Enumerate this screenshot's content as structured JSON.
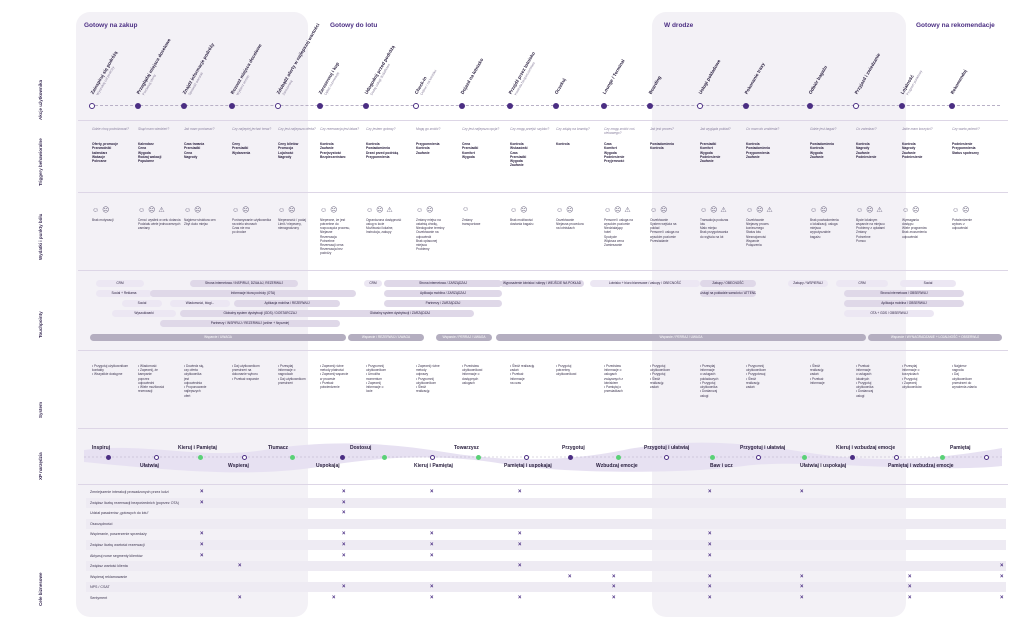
{
  "phases": [
    "Gotowy na zakup",
    "Gotowy do lotu",
    "W drodze",
    "Gotowy na rekomendacje"
  ],
  "rows": [
    "Akcje użytkownika",
    "Triggery behawioralne",
    "Wydatki i punkty bólu",
    "Touchpointy",
    "System",
    "XP narzędzia",
    "Cele biznesowe"
  ],
  "steps": [
    {
      "label": "Zainspiruj się podróżą",
      "sub": "Wyszukaj cel podróży"
    },
    {
      "label": "Przeglądaj miejsca docelowe",
      "sub": "Porównaj oferty"
    },
    {
      "label": "Znajdź informacje podróży",
      "sub": "Sprawdź warunki"
    },
    {
      "label": "Rozważ miejsca docelowe",
      "sub": "Wybierz termin"
    },
    {
      "label": "Zdobądź oferty w najlepszej wartości",
      "sub": "Zarezerwuj"
    },
    {
      "label": "Zarezerwuj i kup",
      "sub": "Opłać rezerwację"
    },
    {
      "label": "Udogodnij przed podróżą",
      "sub": "Dodaj usługi dodatkowe"
    },
    {
      "label": "Check-in",
      "sub": "Online / na lotnisku"
    },
    {
      "label": "Dojazd na lotnisko",
      "sub": ""
    },
    {
      "label": "Przejdź przez lotnisko",
      "sub": "Kontrola bezpieczeństwa"
    },
    {
      "label": "Oczekuj",
      "sub": ""
    },
    {
      "label": "Lounge / Terminal",
      "sub": ""
    },
    {
      "label": "Boarding",
      "sub": ""
    },
    {
      "label": "Usługi pokładowe",
      "sub": ""
    },
    {
      "label": "Pokonanie trasy",
      "sub": ""
    },
    {
      "label": "Odbiór bagażu",
      "sub": ""
    },
    {
      "label": "Przyjazd i zwiedzanie",
      "sub": ""
    },
    {
      "label": "Lojalność",
      "sub": "Program punktowy"
    },
    {
      "label": "Rekomenduj",
      "sub": ""
    }
  ],
  "triggers": [
    {
      "q": "Gdzie chcę podróżować?",
      "a": "Oferty, promocje\nPrzewodniki\nkalendarz\nWakacje\nPolecane",
      "status": ""
    },
    {
      "q": "Skąd mam wiedzieć?",
      "a": "Kalendarz\nCena\nWygoda\nRodzaj wakacji\nPopularne",
      "status": ""
    },
    {
      "q": "Jak mam porównać?",
      "a": "Czas trwania\nPrzesiadki\nCena\nNagrody",
      "status": ""
    },
    {
      "q": "Czy najlepiej jechać teraz?",
      "a": "Ceny\nPrzesiadki\nWydarzenia",
      "status": ""
    },
    {
      "q": "Czy jest najlepsza oferta?",
      "a": "Ceny biletów\nPromocja\nLojalność\nNagrody",
      "status": ""
    },
    {
      "q": "Czy rezerwacja jest łatwa?",
      "a": "Kontrola\nZaufanie\nPrzejrzystość\nBezpieczeństwo",
      "status": ""
    },
    {
      "q": "Czy jestem gotowy?",
      "a": "Kontrola\nPowiadomienia\nDrzwi przed podróżą\nPrzypomnienia",
      "status": ""
    },
    {
      "q": "Mogę go zrobić?",
      "a": "Przypomnienia\nKontrola\nZaufanie",
      "status": ""
    },
    {
      "q": "Czy jest najlepsza opcja?",
      "a": "Cena\nPrzesiadki\nKomfort\nWygoda",
      "status": ""
    },
    {
      "q": "Czy mogę przejść szybko?",
      "a": "Kontrola\nWskazówki\nCzas\nPrzesiadki\nWygoda\nZaufanie",
      "status": ""
    },
    {
      "q": "Czy zdążę na bramkę?",
      "a": "Kontrola",
      "status": ""
    },
    {
      "q": "Czy mogę zrobić coś ciekawego?",
      "a": "Czas\nKomfort\nWygoda\nPodniesienie\nPrzyjemność",
      "status": ""
    },
    {
      "q": "Jak jest proces?",
      "a": "Powiadomienia\nKontrola",
      "status": ""
    },
    {
      "q": "Jak wygląda pokład?",
      "a": "Przesiadki\nKomfort\nWygoda\nPodniesienie\nZaufanie",
      "status": ""
    },
    {
      "q": "Co mam do zrobienia?",
      "a": "Kontrola\nPowiadomienia\nPrzypomnienia\nZaufanie",
      "status": ""
    },
    {
      "q": "Gdzie jest bagaż?",
      "a": "Powiadomienia\nKontrola\nWygoda\nZaufanie",
      "status": ""
    },
    {
      "q": "Co zwiedzać?",
      "a": "Kontrola\nNagrody\nZaufanie\nPodniesienie",
      "status": ""
    },
    {
      "q": "Jakie mam korzyści?",
      "a": "Kontrola\nNagrody\nZaufanie\nPodniesienie",
      "status": ""
    },
    {
      "q": "Czy warto polecić?",
      "a": "Podniesienie\nPrzypomnienia\nStatus społeczny",
      "status": ""
    }
  ],
  "experiences": [
    {
      "emo": "☺ ☹",
      "text": "Brak motywacji"
    },
    {
      "emo": "☺ ☹ ⚠",
      "text": "Cena i wysiłek w celu dotarcia\nPodziału wiele jednoczesnych\nzamiany"
    },
    {
      "emo": "☺ ☹",
      "text": "Najpierw struktura cen\nZbyt dużo miejsc"
    },
    {
      "emo": "☺ ☹",
      "text": "Porównywanie użytkownika\nna wielu stronach\nCzas nie ma\npo drodze"
    },
    {
      "emo": "☺ ☹",
      "text": "Niepewność / podaj\nLimit / niepewny,\nnienagrodzony"
    },
    {
      "emo": "☺ ☹",
      "text": "Niepewne, że jest\npotrzebne do\nrozpoczęcia procesu,\nNiejasne\nRezerwacja\nPotrzebne\nRezerwacji cena\nRezerwacja bez\npodróży"
    },
    {
      "emo": "☺ ☹ ⚠",
      "text": "Ograniczona dostępność\nusług w locie\nMożliwości lokalne,\nInstrukcja, zakupy"
    },
    {
      "emo": "☺ ☹",
      "text": "Zmiany miejsc na\nostatnią chwilę,\nNiedogodne terminy\nOczekiwanie na\nodpowiedź\nBrak opłaconej\nmiejsca\nProblemy"
    },
    {
      "emo": "☺",
      "text": "Zmiany\ntransportowe"
    },
    {
      "emo": "☺ ☹",
      "text": "Brak możliwości\ndostania bagażu"
    },
    {
      "emo": "☺ ☹",
      "text": "Oczekiwanie\nNiejasna procedura\nna lotniskach"
    },
    {
      "emo": "☺ ☹ ⚠",
      "text": "Personel i usługa na\nwysokim poziomie\nNiedziałający\nhotel\nSpożycie\nWiększa cena\nZamieszanie"
    },
    {
      "emo": "☺ ☹",
      "text": "Oczekiwanie\nSystem wejścia na\npokład\nPersonel i usługa na\nwysokim poziomie\nPrzesiadanie"
    },
    {
      "emo": "☺ ☹ ⚠",
      "text": "Transakcja podczas\nlotu\nMało miejsc\nBrak przygotowania\ndo wyjścia na lot"
    },
    {
      "emo": "☺ ☹ ⚠",
      "text": "Oczekiwanie\nNiejasny proces\nkoniecznego\nStatus lotu\nNieznajomość\nWsparcie\nPołączenia"
    },
    {
      "emo": "☺ ☹",
      "text": "Brak powiadomienia\no lokalizacji, usługa\nmiejsca\nwypożyczalnie\nbagażu"
    },
    {
      "emo": "☺ ☹ ⚠",
      "text": "Bycie lokalnym\nwsparcie na miejscu\nProblemy z opłatami\nZmiany\nPotrzebne\nPomoc"
    },
    {
      "emo": "☺ ☹",
      "text": "Wymagania\ndostępu\nWiele programów\nBrak zrozumienia\nodpowiedzi"
    },
    {
      "emo": "☺ ☹",
      "text": "Potwierdzenie\nwyboru z\nodpowiedzi"
    }
  ],
  "touchpoints": [
    {
      "label": "CRM",
      "style": "light"
    },
    {
      "label": "Strona internetowa / INSPIRUJ, DZIAŁAJ, REZERWUJ",
      "style": ""
    },
    {
      "label": "Social + Reklama",
      "style": "light"
    },
    {
      "label": "Informacje biura podróży (OTA)",
      "style": ""
    },
    {
      "label": "Social",
      "style": "light"
    },
    {
      "label": "Wiadomości, blogi...",
      "style": "light"
    },
    {
      "label": "Aplikacja mobilna / REZERWUJ",
      "style": ""
    },
    {
      "label": "Wyszukiwarki",
      "style": "light"
    },
    {
      "label": "Globalny system dystrybucji (GDS) / DOSTARCZAJ",
      "style": ""
    },
    {
      "label": "Partnerzy / INSPIRUJ / REZERWUJ (online + fizycznie)",
      "style": ""
    },
    {
      "label": "Wsparcie / UWAGA",
      "style": "dark"
    },
    {
      "label": "Wsparcie / REZERWUJ / UWAGA",
      "style": "dark"
    },
    {
      "label": "CRM",
      "style": "light"
    },
    {
      "label": "Strona internetowa / ZARZĄDZAJ",
      "style": ""
    },
    {
      "label": "Aplikacja mobilna / ZARZĄDZAJ",
      "style": ""
    },
    {
      "label": "Partnerzy / ZARZĄDZAJ",
      "style": ""
    },
    {
      "label": "Globalny system dystrybucji / ZARZĄDZAJ",
      "style": ""
    },
    {
      "label": "Wsparcie / PERRAJ / UWAGA",
      "style": "dark"
    },
    {
      "label": "Wyposażenie lotniska i sklepy / WEJŚCIE NA POKŁAD",
      "style": ""
    },
    {
      "label": "Lotnisko + biuro biznesowe / zakupy / OBECNOŚĆ",
      "style": "light"
    },
    {
      "label": "Zakupy / OBECNOŚĆ",
      "style": ""
    },
    {
      "label": "Zakupy / WSPIERAJ",
      "style": "light"
    },
    {
      "label": "Usługi na pokładzie samolotu / ATTENDING",
      "style": ""
    },
    {
      "label": "Wsparcie / PERRAJ / UWAGA",
      "style": "dark"
    },
    {
      "label": "CRM",
      "style": "light"
    },
    {
      "label": "Social",
      "style": "light"
    },
    {
      "label": "Strona internetowa / OBSERWUJ",
      "style": ""
    },
    {
      "label": "Aplikacja mobilna / OBSERWUJ",
      "style": ""
    },
    {
      "label": "OTA + GDS / OBSERWUJ",
      "style": "light"
    },
    {
      "label": "Wsparcie / WYNAGRADZANIE + LOJALNOŚĆ + OBSERWUJ",
      "style": "dark"
    }
  ],
  "system": [
    "• Przygotuj użytkownikom kontakty\n• Wszystkie dostępne",
    "• Wiadomość\n• Zapewnij, że\nkampanie\npoprzez\nodpowiedni\n• Wiele możliwości\nrezerwacji",
    "• Dowiedz się,\nczy oferta\nużytkownika\njest\nodpowiednia\n• Proponowanie\nnajlepszych\nofert",
    "• Daj użytkownikom\nprzestrzeń na\ndokonanie wyboru\n• Przekaż wsparcie",
    "• Przesyłaj\ninformacje o\nnagrodach\n• Daj użytkownikom\nprzestrzeń",
    "• Zapewnij różne\nmetody płatności\n• Zapewnij wsparcie\nw procesie\n• Przekaż\npotwierdzenie",
    "• Przypomnij\nużytkownikom\n• Umożliw\nmomentum\n• Zapewnij\ninformacje o\nlocie",
    "• Zapewnij różne\nmetody\nodprawy\n• Przypomnij\nużytkownikom\n• Śledź\nrealizację",
    "• Przedstaw\nużytkownikowi\ninformacje o\ndostępnych\nusługach",
    "• Śledź realizację\nzadań\n• Przekaż\ninformacje\nna czas",
    "• Przygotuj\npotrzebny\nużytkownikowi",
    "• Przedstaw\ninformacje o\nusługach\nzwiązanych z\nlotniskiem\n• Pamiętaj o\nprzesiadkach",
    "• Przygotuj\nużytkownikom\n• Przygotuj\n• Śledź\nrealizację\nzadań",
    "• Przesyłaj\ninformacje\no usługach\npokładowych\n• Przygotuj\nużytkownika\n• Dostarczaj\nusługi",
    "• Przypomnij\nużytkownikom\n• Przygotowuj\n• Śledź\nrealizację\nzadań",
    "• Śledź\nrealizację\nzadań\n• Przekaż\ninformacje",
    "• Przekaż\ninformacje\no usługach\nlokalnych\n• Przygotuj\nużytkownika\n• Dostarczaj\nusługi",
    "• Przesyłaj\ninformacje o\nkorzyściach\n• Przygotuj\n• Zapewnij\nużytkowników",
    "• Najpierw\nnagroda\n• Daj\nużytkownikom\nprzestrzeń do\nwyrażenia zdania"
  ],
  "xp_top": [
    "Inspiruj",
    "Kieruj i Pamiętaj",
    "Tłumacz",
    "Dostosuj",
    "Towarzysz",
    "Przygotuj",
    "Przygotuj i ułatwiaj",
    "Przygotuj i ułatwiaj",
    "Kieruj i wzbudzaj emocje",
    "Pamiętaj"
  ],
  "xp_bottom": [
    "Ułatwiaj",
    "Wspieraj",
    "Uspokajaj",
    "Kieruj i Pamiętaj",
    "Pamiętaj i uspokajaj",
    "Wzbudzaj emocje",
    "Baw i ucz",
    "Ułatwiaj i uspokajaj",
    "Pamiętaj i wzbudzaj emocje"
  ],
  "goals": [
    "Zmniejszenie interakcji prowadzonych przez ludzi",
    "Zwiększ liczbę rezerwacji bezpośrednich (poprzez OTA)",
    "Udział pasażerów „gotowych do lotu”",
    "Oszczędności",
    "Wspieranie, poszerzenie sprzedaży",
    "Zwiększ liczbę wartości rezerwacji",
    "Aktywuj nowe segmenty klientów",
    "Zwiększ wartość klienta",
    "Wspieraj reklamowanie",
    "NPS / CSAT",
    "Sentyment"
  ],
  "goal_mark": "×"
}
